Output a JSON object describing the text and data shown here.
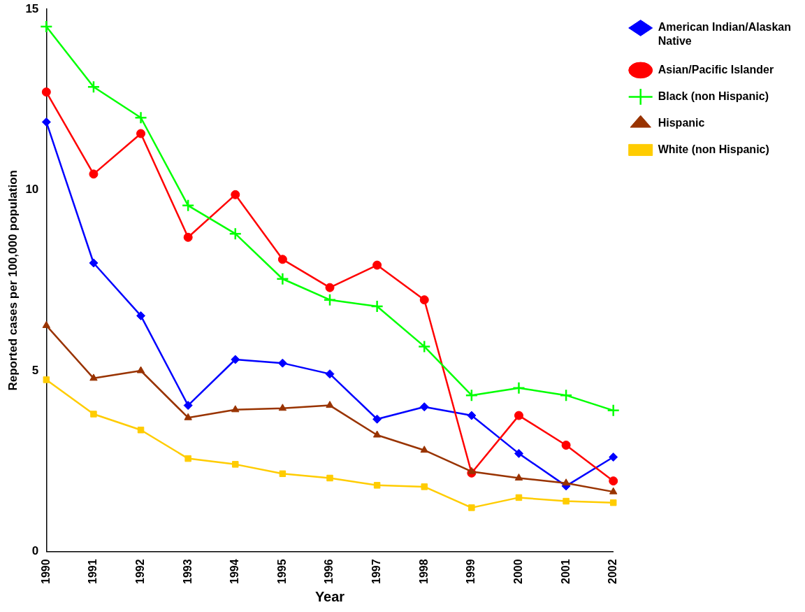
{
  "chart_data": {
    "type": "line",
    "xlabel": "Year",
    "ylabel": "Reported cases per 100,000 population",
    "categories": [
      "1990",
      "1991",
      "1992",
      "1993",
      "1994",
      "1995",
      "1996",
      "1997",
      "1998",
      "1999",
      "2000",
      "2001",
      "2002"
    ],
    "ylim": [
      0,
      15
    ],
    "yticks": [
      0,
      5,
      10,
      15
    ],
    "grid": false,
    "legend": "top right",
    "series": [
      {
        "name": "American Indian/Alaskan Native",
        "color": "#0000ff",
        "marker": "diamond",
        "values": [
          11.88,
          7.98,
          6.52,
          4.04,
          5.31,
          5.21,
          4.91,
          3.66,
          4.0,
          3.76,
          2.71,
          1.81,
          2.61
        ]
      },
      {
        "name": "Asian/Pacific Islander",
        "color": "#ff0000",
        "marker": "circle",
        "values": [
          12.71,
          10.44,
          11.56,
          8.69,
          9.87,
          8.08,
          7.3,
          7.92,
          6.96,
          2.17,
          3.76,
          2.94,
          1.95
        ]
      },
      {
        "name": "Black (non Hispanic)",
        "color": "#00ff00",
        "marker": "cross",
        "values": [
          14.52,
          12.85,
          12.0,
          9.57,
          8.79,
          7.54,
          6.96,
          6.78,
          5.67,
          4.32,
          4.52,
          4.32,
          3.9
        ]
      },
      {
        "name": "Hispanic",
        "color": "#993300",
        "marker": "triangle",
        "values": [
          6.25,
          4.79,
          5.0,
          3.7,
          3.92,
          3.96,
          4.04,
          3.22,
          2.8,
          2.21,
          2.03,
          1.89,
          1.65
        ]
      },
      {
        "name": "White (non Hispanic)",
        "color": "#ffcc00",
        "marker": "square",
        "values": [
          4.75,
          3.8,
          3.36,
          2.57,
          2.41,
          2.15,
          2.03,
          1.83,
          1.79,
          1.21,
          1.49,
          1.39,
          1.35
        ]
      }
    ]
  }
}
